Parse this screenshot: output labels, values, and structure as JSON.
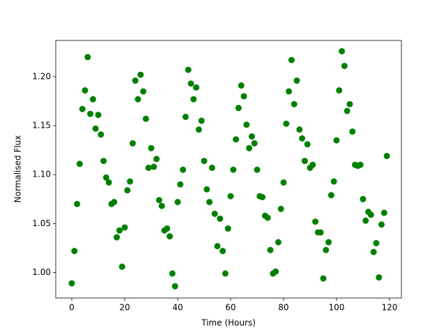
{
  "chart_data": {
    "type": "scatter",
    "xlabel": "Time (Hours)",
    "ylabel": "Normalised Flux",
    "color": "#008000",
    "x": [
      0,
      1,
      2,
      3,
      4,
      5,
      6,
      7,
      8,
      9,
      10,
      11,
      12,
      13,
      14,
      15,
      16,
      17,
      18,
      19,
      20,
      21,
      22,
      23,
      24,
      25,
      26,
      27,
      28,
      29,
      30,
      31,
      32,
      33,
      34,
      35,
      36,
      37,
      38,
      39,
      40,
      41,
      42,
      43,
      44,
      45,
      46,
      47,
      48,
      49,
      50,
      51,
      52,
      53,
      54,
      55,
      56,
      57,
      58,
      59,
      60,
      61,
      62,
      63,
      64,
      65,
      66,
      67,
      68,
      69,
      70,
      71,
      72,
      73,
      74,
      75,
      76,
      77,
      78,
      79,
      80,
      81,
      82,
      83,
      84,
      85,
      86,
      87,
      88,
      89,
      90,
      91,
      92,
      93,
      94,
      95,
      96,
      97,
      98,
      99,
      100,
      101,
      102,
      103,
      104,
      105,
      106,
      107,
      108,
      109,
      110,
      111,
      112,
      113,
      114,
      115,
      116,
      117,
      118,
      119
    ],
    "values": [
      0.989,
      1.022,
      1.07,
      1.111,
      1.167,
      1.186,
      1.22,
      1.162,
      1.177,
      1.147,
      1.161,
      1.141,
      1.114,
      1.097,
      1.092,
      1.07,
      1.072,
      1.036,
      1.043,
      1.006,
      1.046,
      1.084,
      1.093,
      1.132,
      1.196,
      1.177,
      1.202,
      1.185,
      1.157,
      1.107,
      1.127,
      1.108,
      1.116,
      1.074,
      1.068,
      1.043,
      1.045,
      1.037,
      0.999,
      0.986,
      1.072,
      1.09,
      1.105,
      1.159,
      1.207,
      1.193,
      1.177,
      1.189,
      1.146,
      1.155,
      1.114,
      1.085,
      1.072,
      1.107,
      1.06,
      1.027,
      1.055,
      1.022,
      0.999,
      1.045,
      1.078,
      1.105,
      1.136,
      1.168,
      1.191,
      1.18,
      1.151,
      1.127,
      1.139,
      1.132,
      1.105,
      1.078,
      1.077,
      1.058,
      1.056,
      1.023,
      0.999,
      1.001,
      1.031,
      1.065,
      1.092,
      1.152,
      1.185,
      1.217,
      1.172,
      1.196,
      1.146,
      1.137,
      1.114,
      1.131,
      1.107,
      1.11,
      1.052,
      1.041,
      1.041,
      0.994,
      1.023,
      1.031,
      1.079,
      1.093,
      1.135,
      1.186,
      1.226,
      1.211,
      1.165,
      1.172,
      1.144,
      1.11,
      1.109,
      1.11,
      1.075,
      1.053,
      1.062,
      1.059,
      1.021,
      1.03,
      0.995,
      1.049,
      1.061,
      1.119
    ],
    "xlim": [
      -6.05,
      124.5
    ],
    "ylim": [
      0.974,
      1.237
    ],
    "xticks": [
      0,
      20,
      40,
      60,
      80,
      100,
      120
    ],
    "yticks": [
      {
        "value": 1.0,
        "label": "1.00"
      },
      {
        "value": 1.05,
        "label": "1.05"
      },
      {
        "value": 1.1,
        "label": "1.10"
      },
      {
        "value": 1.15,
        "label": "1.15"
      },
      {
        "value": 1.2,
        "label": "1.20"
      }
    ],
    "grid": false
  }
}
